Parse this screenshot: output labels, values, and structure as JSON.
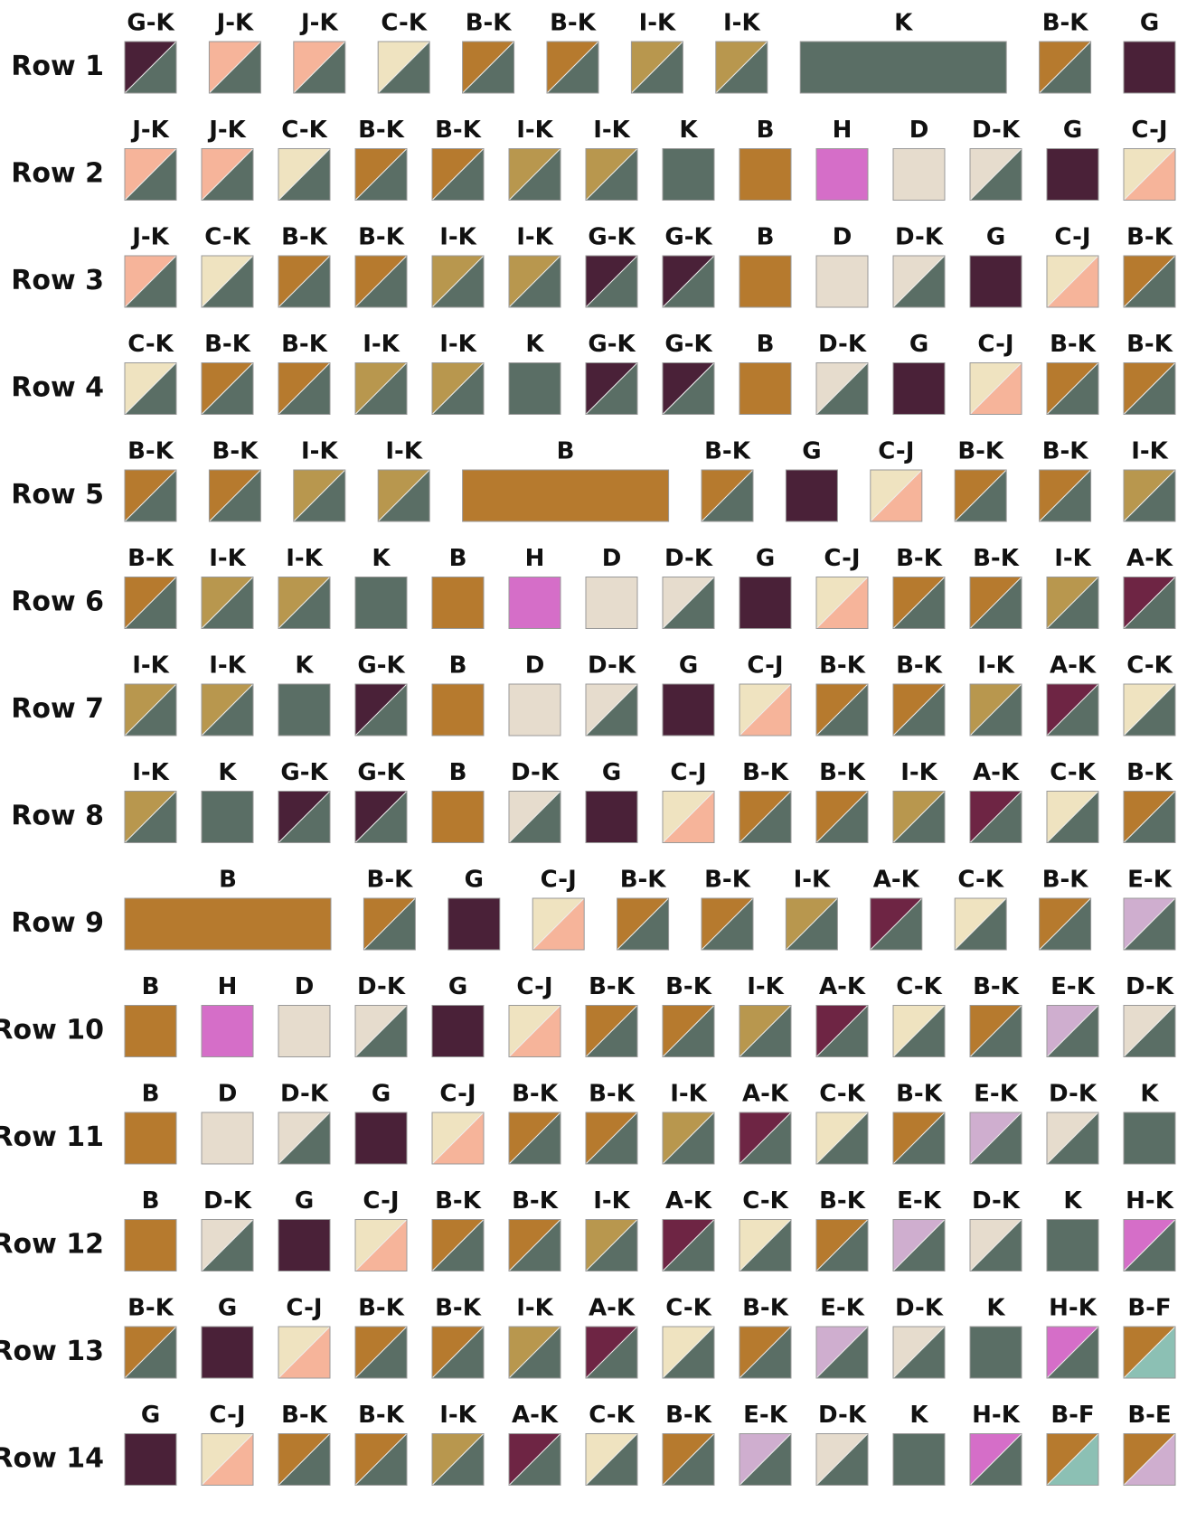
{
  "rows": [
    {
      "label": "Row 1",
      "blocks": [
        "G-K",
        "J-K",
        "J-K",
        "C-K",
        "B-K",
        "B-K",
        "I-K",
        "I-K",
        "K",
        "B-K",
        "G"
      ]
    },
    {
      "label": "Row 2",
      "blocks": [
        "J-K",
        "J-K",
        "C-K",
        "B-K",
        "B-K",
        "I-K",
        "I-K",
        "K",
        "B",
        "H",
        "D",
        "D-K",
        "G",
        "C-J"
      ]
    },
    {
      "label": "Row 3",
      "blocks": [
        "J-K",
        "C-K",
        "B-K",
        "B-K",
        "I-K",
        "I-K",
        "G-K",
        "G-K",
        "B",
        "D",
        "D-K",
        "G",
        "C-J",
        "B-K"
      ]
    },
    {
      "label": "Row 4",
      "blocks": [
        "C-K",
        "B-K",
        "B-K",
        "I-K",
        "I-K",
        "K",
        "G-K",
        "G-K",
        "B",
        "D-K",
        "G",
        "C-J",
        "B-K",
        "B-K"
      ]
    },
    {
      "label": "Row 5",
      "blocks": [
        "B-K",
        "B-K",
        "I-K",
        "I-K",
        "B",
        "B-K",
        "G",
        "C-J",
        "B-K",
        "B-K",
        "I-K"
      ]
    },
    {
      "label": "Row 6",
      "blocks": [
        "B-K",
        "I-K",
        "I-K",
        "K",
        "B",
        "H",
        "D",
        "D-K",
        "G",
        "C-J",
        "B-K",
        "B-K",
        "I-K",
        "A-K"
      ]
    },
    {
      "label": "Row 7",
      "blocks": [
        "I-K",
        "I-K",
        "K",
        "G-K",
        "B",
        "D",
        "D-K",
        "G",
        "C-J",
        "B-K",
        "B-K",
        "I-K",
        "A-K",
        "C-K"
      ]
    },
    {
      "label": "Row 8",
      "blocks": [
        "I-K",
        "K",
        "G-K",
        "G-K",
        "B",
        "D-K",
        "G",
        "C-J",
        "B-K",
        "B-K",
        "I-K",
        "A-K",
        "C-K",
        "B-K"
      ]
    },
    {
      "label": "Row 9",
      "blocks": [
        "B",
        "B-K",
        "G",
        "C-J",
        "B-K",
        "B-K",
        "I-K",
        "A-K",
        "C-K",
        "B-K",
        "E-K"
      ]
    },
    {
      "label": "Row 10",
      "blocks": [
        "B",
        "H",
        "D",
        "D-K",
        "G",
        "C-J",
        "B-K",
        "B-K",
        "I-K",
        "A-K",
        "C-K",
        "B-K",
        "E-K",
        "D-K"
      ]
    },
    {
      "label": "Row 11",
      "blocks": [
        "B",
        "D",
        "D-K",
        "G",
        "C-J",
        "B-K",
        "B-K",
        "I-K",
        "A-K",
        "C-K",
        "B-K",
        "E-K",
        "D-K",
        "K"
      ]
    },
    {
      "label": "Row 12",
      "blocks": [
        "B",
        "D-K",
        "G",
        "C-J",
        "B-K",
        "B-K",
        "I-K",
        "A-K",
        "C-K",
        "B-K",
        "E-K",
        "D-K",
        "K",
        "H-K"
      ]
    },
    {
      "label": "Row 13",
      "blocks": [
        "B-K",
        "G",
        "C-J",
        "B-K",
        "B-K",
        "I-K",
        "A-K",
        "C-K",
        "B-K",
        "E-K",
        "D-K",
        "K",
        "H-K",
        "B-F"
      ]
    },
    {
      "label": "Row 14",
      "blocks": [
        "G",
        "C-J",
        "B-K",
        "B-K",
        "I-K",
        "A-K",
        "C-K",
        "B-K",
        "E-K",
        "D-K",
        "K",
        "H-K",
        "B-F",
        "B-E"
      ]
    }
  ],
  "fabric_colors": {
    "A": "#6e2544",
    "B": "#b67a2e",
    "C": "#efe3c0",
    "D": "#e6dccd",
    "E": "#cfaecf",
    "F": "#8cc0b4",
    "G": "#4a2138",
    "H": "#d56ec8",
    "I": "#b8974e",
    "J": "#f6b49a",
    "K": "#5a6e65"
  }
}
